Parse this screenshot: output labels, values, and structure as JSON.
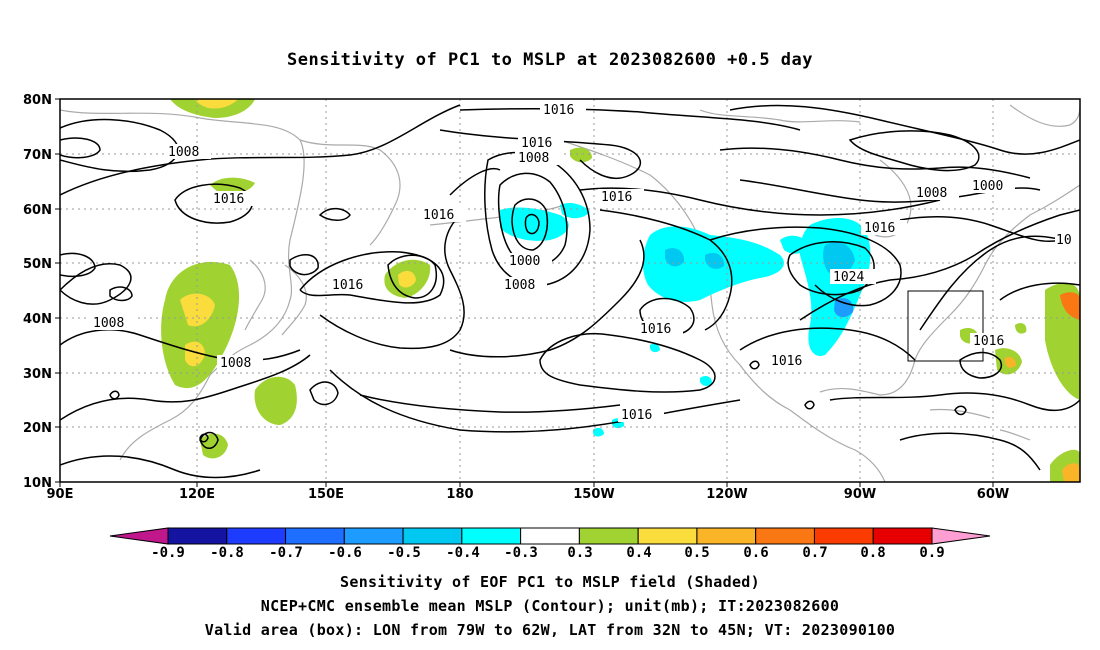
{
  "title": "Sensitivity of PC1 to MSLP at 2023082600 +0.5 day",
  "lat_labels": [
    "80N",
    "70N",
    "60N",
    "50N",
    "40N",
    "30N",
    "20N",
    "10N"
  ],
  "lon_labels": [
    "90E",
    "120E",
    "150E",
    "180",
    "150W",
    "120W",
    "90W",
    "60W"
  ],
  "contour_labels": [
    "1016",
    "1016",
    "1008",
    "1008",
    "1016",
    "1016",
    "1016",
    "1000",
    "1008",
    "1016",
    "1008",
    "1008",
    "1016",
    "1016",
    "1016",
    "1024",
    "1008",
    "1000",
    "1016",
    "1016",
    "1016",
    "10"
  ],
  "colorbar": {
    "labels": [
      "-0.9",
      "-0.8",
      "-0.7",
      "-0.6",
      "-0.5",
      "-0.4",
      "-0.3",
      "0.3",
      "0.4",
      "0.5",
      "0.6",
      "0.7",
      "0.8",
      "0.9"
    ],
    "colors": [
      "#c0188c",
      "#1414a0",
      "#1e3cff",
      "#1e6eff",
      "#1e9bff",
      "#00c8f0",
      "#00ffff",
      "#ffffff",
      "#a0d232",
      "#fadc3c",
      "#fab428",
      "#fa7814",
      "#fa3c00",
      "#e60000",
      "#ff9ed2"
    ]
  },
  "box": {
    "lon_range": "79W to 62W",
    "lat_range": "32N to 45N"
  },
  "captions": [
    "Sensitivity of EOF PC1 to MSLP field (Shaded)",
    "NCEP+CMC ensemble mean MSLP (Contour); unit(mb); IT:2023082600",
    "Valid area (box): LON from 79W to 62W, LAT from 32N to 45N; VT: 2023090100"
  ]
}
